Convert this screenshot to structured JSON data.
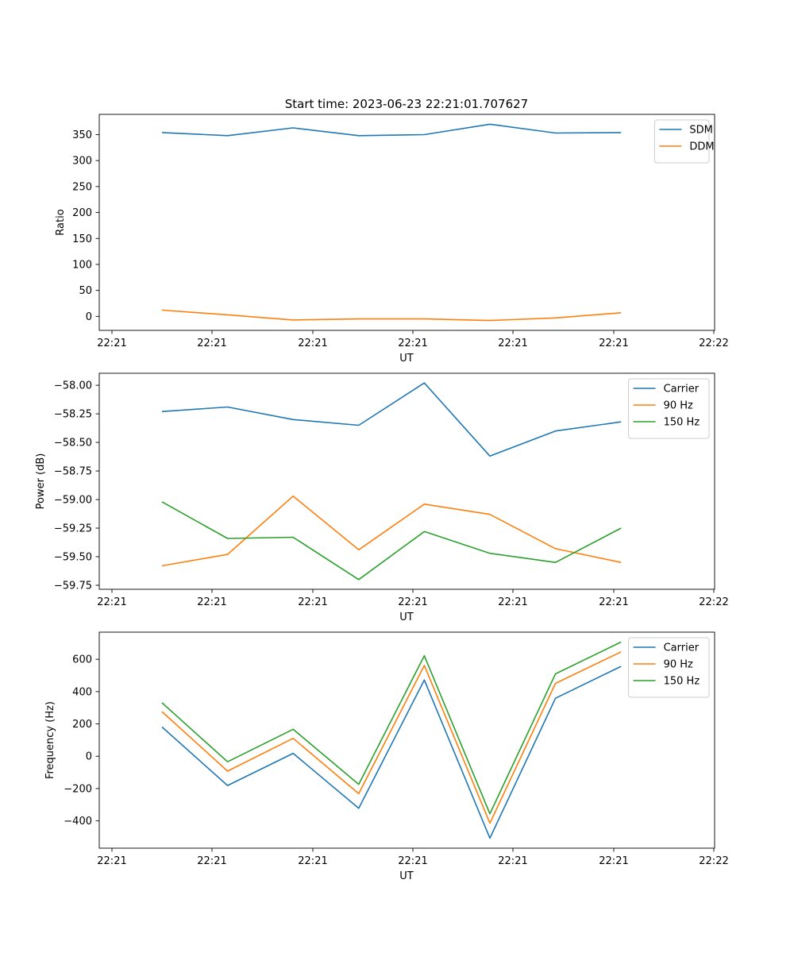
{
  "figure_title": "Start time: 2023-06-23 22:21:01.707627",
  "chart_data": [
    {
      "type": "line",
      "title": "Start time: 2023-06-23 22:21:01.707627",
      "xlabel": "UT",
      "ylabel": "Ratio",
      "x_ticks": [
        "22:21",
        "22:21",
        "22:21",
        "22:21",
        "22:21",
        "22:21",
        "22:22"
      ],
      "y_ticks": [
        0,
        50,
        100,
        150,
        200,
        250,
        300,
        350
      ],
      "ylim": [
        -27,
        389
      ],
      "grid": false,
      "legend_position": "top-right",
      "series": [
        {
          "name": "SDM",
          "color": "#1f77b4",
          "values": [
            354,
            348,
            363,
            348,
            350,
            370,
            353,
            354
          ]
        },
        {
          "name": "DDM",
          "color": "#ff7f0e",
          "values": [
            12,
            3,
            -7,
            -5,
            -5,
            -8,
            -3,
            7
          ]
        }
      ]
    },
    {
      "type": "line",
      "title": "",
      "xlabel": "UT",
      "ylabel": "Power (dB)",
      "x_ticks": [
        "22:21",
        "22:21",
        "22:21",
        "22:21",
        "22:21",
        "22:21",
        "22:22"
      ],
      "y_ticks": [
        -59.75,
        -59.5,
        -59.25,
        -59.0,
        -58.75,
        -58.5,
        -58.25,
        -58.0
      ],
      "y_tick_labels": [
        "−59.75",
        "−59.50",
        "−59.25",
        "−59.00",
        "−58.75",
        "−58.50",
        "−58.25",
        "−58.00"
      ],
      "ylim": [
        -59.785,
        -57.895
      ],
      "grid": false,
      "legend_position": "top-right",
      "series": [
        {
          "name": "Carrier",
          "color": "#1f77b4",
          "values": [
            -58.23,
            -58.19,
            -58.3,
            -58.35,
            -57.98,
            -58.62,
            -58.4,
            -58.32
          ]
        },
        {
          "name": "90 Hz",
          "color": "#ff7f0e",
          "values": [
            -59.58,
            -59.48,
            -58.97,
            -59.44,
            -59.04,
            -59.13,
            -59.43,
            -59.55
          ]
        },
        {
          "name": "150 Hz",
          "color": "#2ca02c",
          "values": [
            -59.02,
            -59.34,
            -59.33,
            -59.7,
            -59.28,
            -59.47,
            -59.55,
            -59.25
          ]
        }
      ]
    },
    {
      "type": "line",
      "title": "",
      "xlabel": "UT",
      "ylabel": "Frequency (Hz)",
      "x_ticks": [
        "22:21",
        "22:21",
        "22:21",
        "22:21",
        "22:21",
        "22:21",
        "22:22"
      ],
      "y_ticks": [
        -400,
        -200,
        0,
        200,
        400,
        600
      ],
      "y_tick_labels": [
        "−400",
        "−200",
        "0",
        "200",
        "400",
        "600"
      ],
      "ylim": [
        -569,
        768
      ],
      "grid": false,
      "legend_position": "top-right",
      "series": [
        {
          "name": "Carrier",
          "color": "#1f77b4",
          "values": [
            181,
            -181,
            18,
            -322,
            472,
            -507,
            359,
            556
          ]
        },
        {
          "name": "90 Hz",
          "color": "#ff7f0e",
          "values": [
            276,
            -92,
            111,
            -232,
            562,
            -414,
            451,
            646
          ]
        },
        {
          "name": "150 Hz",
          "color": "#2ca02c",
          "values": [
            331,
            -34,
            167,
            -174,
            622,
            -356,
            510,
            707
          ]
        }
      ]
    }
  ]
}
